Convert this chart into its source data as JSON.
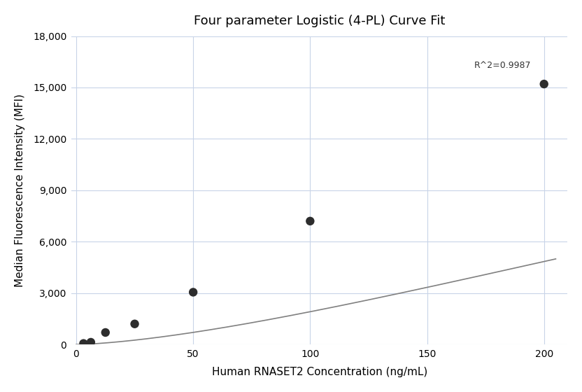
{
  "title": "Four parameter Logistic (4-PL) Curve Fit",
  "xlabel": "Human RNASET2 Concentration (ng/mL)",
  "ylabel": "Median Fluorescence Intensity (MFI)",
  "x_data": [
    3.125,
    6.25,
    12.5,
    25,
    50,
    100,
    200
  ],
  "y_data": [
    60,
    130,
    700,
    1200,
    3050,
    7200,
    15200
  ],
  "xlim": [
    -2,
    210
  ],
  "ylim": [
    0,
    18000
  ],
  "yticks": [
    0,
    3000,
    6000,
    9000,
    12000,
    15000,
    18000
  ],
  "xticks": [
    0,
    50,
    100,
    150,
    200
  ],
  "r_squared": "R^2=0.9987",
  "dot_color": "#2d2d2d",
  "line_color": "#808080",
  "dot_size": 80,
  "background_color": "#ffffff",
  "grid_color": "#c8d4e8",
  "title_fontsize": 13,
  "label_fontsize": 11,
  "tick_fontsize": 10,
  "annotation_fontsize": 9
}
